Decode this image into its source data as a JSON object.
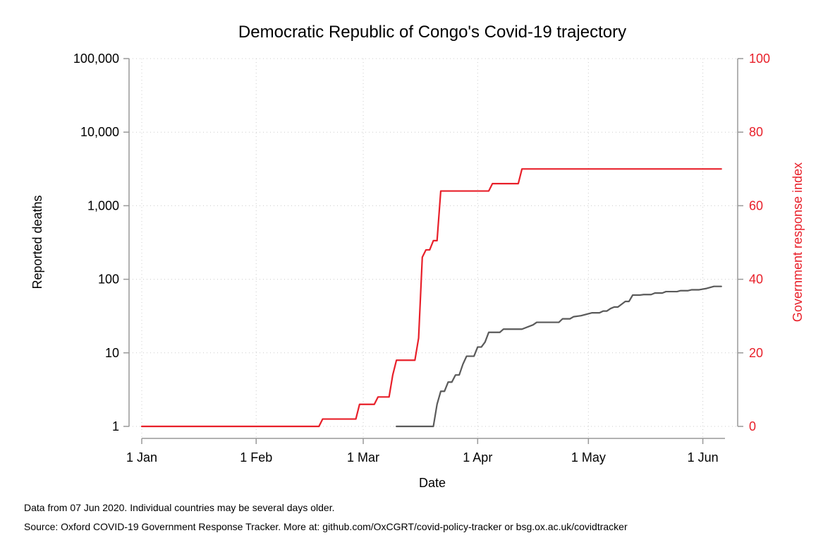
{
  "chart_data": {
    "type": "line",
    "title": "Democratic Republic of Congo's Covid-19 trajectory",
    "xlabel": "Date",
    "ylabel_left": "Reported deaths",
    "ylabel_right": "Government response index",
    "x_ticks": [
      "1 Jan",
      "1 Feb",
      "1 Mar",
      "1 Apr",
      "1 May",
      "1 Jun"
    ],
    "x_tick_dates": [
      "2020-01-01",
      "2020-02-01",
      "2020-03-01",
      "2020-04-01",
      "2020-05-01",
      "2020-06-01"
    ],
    "xlim": [
      "2020-01-01",
      "2020-06-07"
    ],
    "y_left_ticks": [
      "1",
      "10",
      "100",
      "1,000",
      "10,000",
      "100,000"
    ],
    "y_left_scale": "log",
    "y_left_range": [
      1,
      100000
    ],
    "y_right_ticks": [
      "0",
      "20",
      "40",
      "60",
      "80",
      "100"
    ],
    "y_right_range": [
      0,
      100
    ],
    "grid": "dotted",
    "colors": {
      "deaths": "#5a5a5a",
      "response": "#e8202a",
      "axis": "#999999",
      "grid": "#cccccc"
    },
    "series": [
      {
        "name": "Government response index",
        "axis": "right",
        "points": [
          [
            "2020-01-01",
            0
          ],
          [
            "2020-02-18",
            0
          ],
          [
            "2020-02-19",
            2
          ],
          [
            "2020-02-28",
            2
          ],
          [
            "2020-02-29",
            6
          ],
          [
            "2020-03-04",
            6
          ],
          [
            "2020-03-05",
            8
          ],
          [
            "2020-03-08",
            8
          ],
          [
            "2020-03-09",
            14
          ],
          [
            "2020-03-10",
            18
          ],
          [
            "2020-03-15",
            18
          ],
          [
            "2020-03-16",
            24
          ],
          [
            "2020-03-17",
            46
          ],
          [
            "2020-03-18",
            48
          ],
          [
            "2020-03-19",
            48
          ],
          [
            "2020-03-20",
            50.5
          ],
          [
            "2020-03-21",
            50.5
          ],
          [
            "2020-03-22",
            64
          ],
          [
            "2020-04-04",
            64
          ],
          [
            "2020-04-05",
            66
          ],
          [
            "2020-04-12",
            66
          ],
          [
            "2020-04-13",
            70
          ],
          [
            "2020-06-06",
            70
          ]
        ]
      },
      {
        "name": "Reported deaths",
        "axis": "left",
        "points": [
          [
            "2020-03-10",
            1
          ],
          [
            "2020-03-20",
            1
          ],
          [
            "2020-03-21",
            2
          ],
          [
            "2020-03-22",
            3
          ],
          [
            "2020-03-23",
            3
          ],
          [
            "2020-03-24",
            4
          ],
          [
            "2020-03-25",
            4
          ],
          [
            "2020-03-26",
            5
          ],
          [
            "2020-03-27",
            5
          ],
          [
            "2020-03-28",
            7
          ],
          [
            "2020-03-29",
            9
          ],
          [
            "2020-03-31",
            9
          ],
          [
            "2020-04-01",
            12
          ],
          [
            "2020-04-02",
            12
          ],
          [
            "2020-04-03",
            14
          ],
          [
            "2020-04-04",
            19
          ],
          [
            "2020-04-07",
            19
          ],
          [
            "2020-04-08",
            21
          ],
          [
            "2020-04-13",
            21
          ],
          [
            "2020-04-16",
            24
          ],
          [
            "2020-04-17",
            26
          ],
          [
            "2020-04-23",
            26
          ],
          [
            "2020-04-24",
            29
          ],
          [
            "2020-04-26",
            29
          ],
          [
            "2020-04-27",
            31
          ],
          [
            "2020-04-29",
            32
          ],
          [
            "2020-05-02",
            35
          ],
          [
            "2020-05-04",
            35
          ],
          [
            "2020-05-05",
            37
          ],
          [
            "2020-05-06",
            37
          ],
          [
            "2020-05-07",
            40
          ],
          [
            "2020-05-08",
            42
          ],
          [
            "2020-05-09",
            42
          ],
          [
            "2020-05-11",
            50
          ],
          [
            "2020-05-12",
            50
          ],
          [
            "2020-05-13",
            61
          ],
          [
            "2020-05-15",
            61
          ],
          [
            "2020-05-16",
            62
          ],
          [
            "2020-05-18",
            62
          ],
          [
            "2020-05-19",
            65
          ],
          [
            "2020-05-21",
            65
          ],
          [
            "2020-05-22",
            68
          ],
          [
            "2020-05-25",
            68
          ],
          [
            "2020-05-26",
            70
          ],
          [
            "2020-05-28",
            70
          ],
          [
            "2020-05-29",
            72
          ],
          [
            "2020-05-31",
            72
          ],
          [
            "2020-06-02",
            75
          ],
          [
            "2020-06-04",
            80
          ],
          [
            "2020-06-06",
            80
          ]
        ]
      }
    ]
  },
  "notes": {
    "data_date": "Data from 07 Jun 2020. Individual countries may be several days older.",
    "source": "Source: Oxford COVID-19 Government Response Tracker. More at: github.com/OxCGRT/covid-policy-tracker or bsg.ox.ac.uk/covidtracker"
  }
}
